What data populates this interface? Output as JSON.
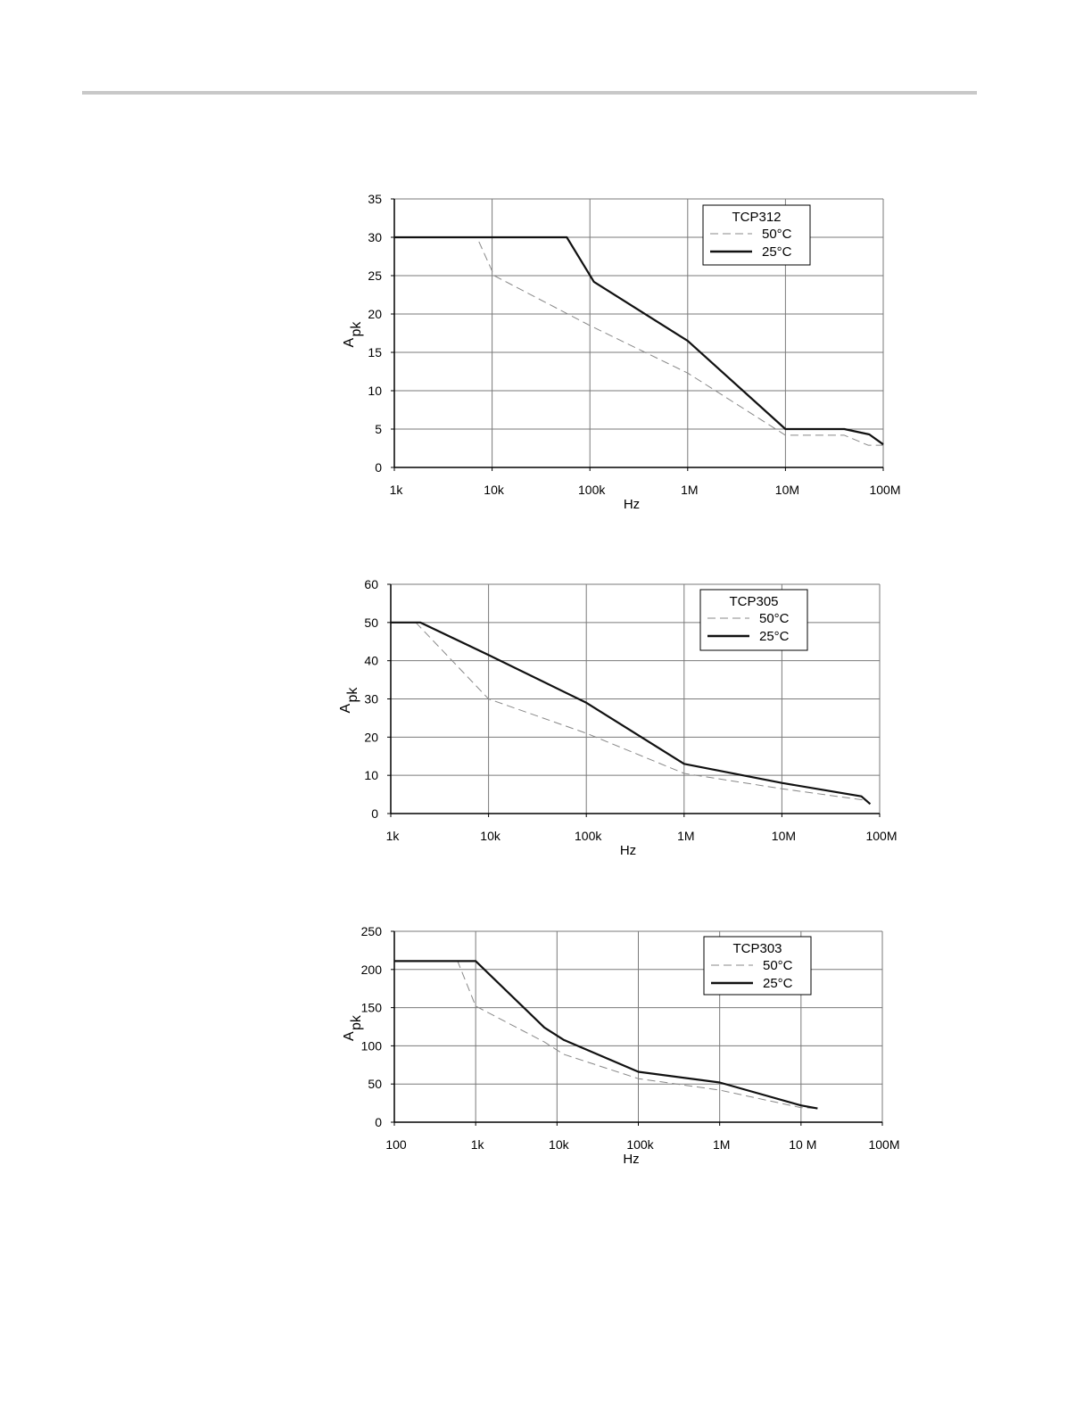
{
  "chart_data": [
    {
      "type": "line",
      "x_scale": "log",
      "x_ticks": [
        1000,
        10000,
        100000,
        1000000,
        10000000,
        100000000
      ],
      "x_tick_labels": [
        "1k",
        "10k",
        "100k",
        "1M",
        "10M",
        "100M"
      ],
      "xlabel": "Hz",
      "ylabel_main": "A",
      "ylabel_sub": "pk",
      "ylim": [
        0,
        35
      ],
      "y_ticks": [
        0,
        5,
        10,
        15,
        20,
        25,
        30,
        35
      ],
      "grid": true,
      "legend_title": "TCP312",
      "legend_position": "top-right",
      "series": [
        {
          "name": "50°C",
          "style": "dashed",
          "color": "#888888",
          "x": [
            1000,
            7000,
            10500,
            100000,
            1000000,
            10000000,
            40000000,
            70000000,
            100000000
          ],
          "y": [
            30,
            30,
            25,
            18.5,
            12.3,
            4.2,
            4.2,
            2.9,
            2.9
          ]
        },
        {
          "name": "25°C",
          "style": "solid",
          "color": "#111111",
          "x": [
            1000,
            58000,
            110000,
            1000000,
            10000000,
            40000000,
            72000000,
            100000000
          ],
          "y": [
            30,
            30,
            24.2,
            16.5,
            5,
            5,
            4.3,
            3
          ]
        }
      ]
    },
    {
      "type": "line",
      "x_scale": "log",
      "x_ticks": [
        1000,
        10000,
        100000,
        1000000,
        10000000,
        100000000
      ],
      "x_tick_labels": [
        "1k",
        "10k",
        "100k",
        "1M",
        "10M",
        "100M"
      ],
      "xlabel": "Hz",
      "ylabel_main": "A",
      "ylabel_sub": "pk",
      "ylim": [
        0,
        60
      ],
      "y_ticks": [
        0,
        10,
        20,
        30,
        40,
        50,
        60
      ],
      "grid": true,
      "legend_title": "TCP305",
      "legend_position": "top-right",
      "series": [
        {
          "name": "50°C",
          "style": "dashed",
          "color": "#888888",
          "x": [
            1000,
            1800,
            10000,
            100000,
            1000000,
            10000000,
            70000000,
            80000000
          ],
          "y": [
            50,
            50,
            30,
            21,
            10.5,
            6.5,
            3.5,
            2.5
          ]
        },
        {
          "name": "25°C",
          "style": "solid",
          "color": "#111111",
          "x": [
            1000,
            2000,
            10000,
            100000,
            1000000,
            10000000,
            65000000,
            80000000
          ],
          "y": [
            50,
            50,
            41.5,
            29,
            13,
            8,
            4.5,
            2.5
          ]
        }
      ]
    },
    {
      "type": "line",
      "x_scale": "log",
      "x_ticks": [
        100,
        1000,
        10000,
        100000,
        1000000,
        10000000,
        100000000
      ],
      "x_tick_labels": [
        "100",
        "1k",
        "10k",
        "100k",
        "1M",
        "10 M",
        "100M"
      ],
      "xlabel": "Hz",
      "ylabel_main": "A",
      "ylabel_sub": "pk",
      "ylim": [
        0,
        250
      ],
      "y_ticks": [
        0,
        50,
        100,
        150,
        200,
        250
      ],
      "grid": true,
      "legend_title": "TCP303",
      "legend_position": "top-right",
      "series": [
        {
          "name": "50°C",
          "style": "dashed",
          "color": "#888888",
          "x": [
            100,
            600,
            1000,
            7000,
            12000,
            100000,
            1000000,
            10000000,
            16000000
          ],
          "y": [
            211,
            211,
            152,
            105,
            89,
            57,
            42,
            19,
            18
          ]
        },
        {
          "name": "25°C",
          "style": "solid",
          "color": "#111111",
          "x": [
            100,
            1000,
            7000,
            12000,
            100000,
            1000000,
            10000000,
            16000000
          ],
          "y": [
            211,
            211,
            124,
            108,
            66,
            52,
            22,
            18
          ]
        }
      ]
    }
  ]
}
